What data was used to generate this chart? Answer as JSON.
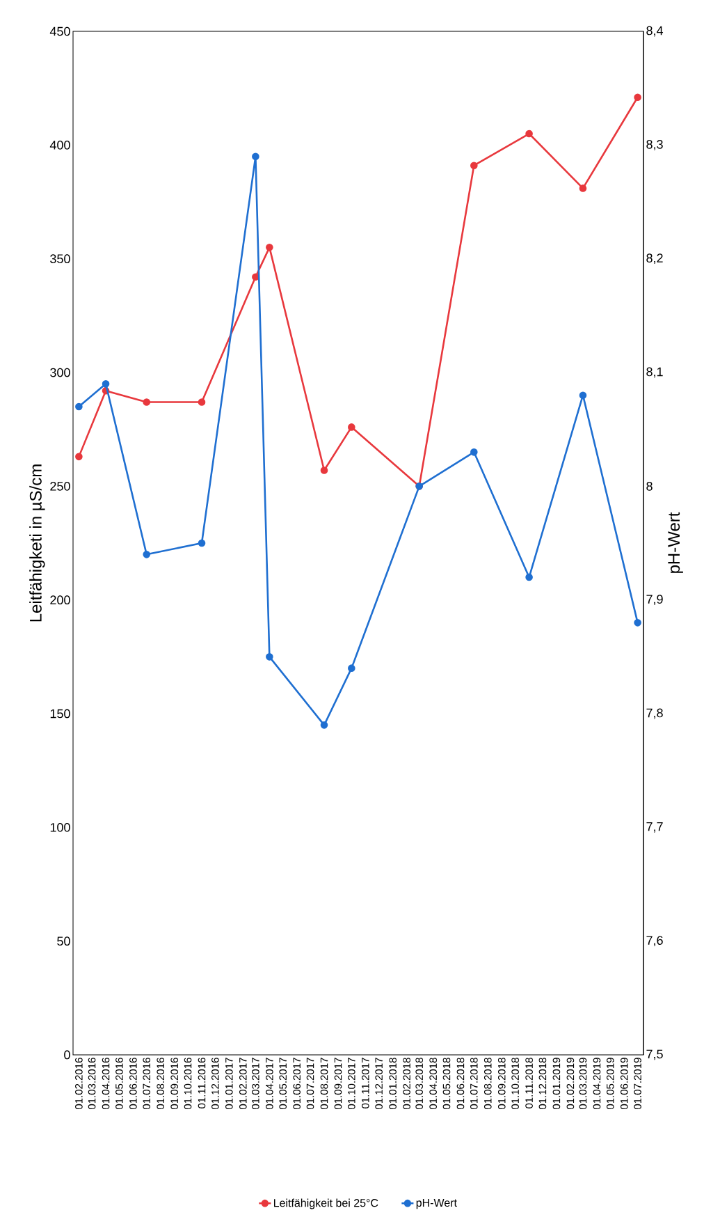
{
  "chart_data": {
    "type": "line",
    "ylabel": "Leitfähigketi in µS/cm",
    "y2label": "pH-Wert",
    "xlim": [
      "2016-01-19",
      "2019-07-14"
    ],
    "ylim": [
      0,
      450
    ],
    "yticks": [
      0,
      50,
      100,
      150,
      200,
      250,
      300,
      350,
      400,
      450
    ],
    "y2lim": [
      7.5,
      8.4
    ],
    "y2ticks": [
      {
        "value": 7.5,
        "label": "7,5"
      },
      {
        "value": 7.6,
        "label": "7,6"
      },
      {
        "value": 7.7,
        "label": "7,7"
      },
      {
        "value": 7.8,
        "label": "7,8"
      },
      {
        "value": 7.9,
        "label": "7,9"
      },
      {
        "value": 8,
        "label": "8"
      },
      {
        "value": 8.1,
        "label": "8,1"
      },
      {
        "value": 8.2,
        "label": "8,2"
      },
      {
        "value": 8.3,
        "label": "8,3"
      },
      {
        "value": 8.4,
        "label": "8,4"
      }
    ],
    "xticks": [
      {
        "value": "2016-02-01",
        "label": "01.02.2016"
      },
      {
        "value": "2016-03-01",
        "label": "01.03.2016"
      },
      {
        "value": "2016-04-01",
        "label": "01.04.2016"
      },
      {
        "value": "2016-05-01",
        "label": "01.05.2016"
      },
      {
        "value": "2016-06-01",
        "label": "01.06.2016"
      },
      {
        "value": "2016-07-01",
        "label": "01.07.2016"
      },
      {
        "value": "2016-08-01",
        "label": "01.08.2016"
      },
      {
        "value": "2016-09-01",
        "label": "01.09.2016"
      },
      {
        "value": "2016-10-01",
        "label": "01.10.2016"
      },
      {
        "value": "2016-11-01",
        "label": "01.11.2016"
      },
      {
        "value": "2016-12-01",
        "label": "01.12.2016"
      },
      {
        "value": "2017-01-01",
        "label": "01.01.2017"
      },
      {
        "value": "2017-02-01",
        "label": "01.02.2017"
      },
      {
        "value": "2017-03-01",
        "label": "01.03.2017"
      },
      {
        "value": "2017-04-01",
        "label": "01.04.2017"
      },
      {
        "value": "2017-05-01",
        "label": "01.05.2017"
      },
      {
        "value": "2017-06-01",
        "label": "01.06.2017"
      },
      {
        "value": "2017-07-01",
        "label": "01.07.2017"
      },
      {
        "value": "2017-08-01",
        "label": "01.08.2017"
      },
      {
        "value": "2017-09-01",
        "label": "01.09.2017"
      },
      {
        "value": "2017-10-01",
        "label": "01.10.2017"
      },
      {
        "value": "2017-11-01",
        "label": "01.11.2017"
      },
      {
        "value": "2017-12-01",
        "label": "01.12.2017"
      },
      {
        "value": "2018-01-01",
        "label": "01.01.2018"
      },
      {
        "value": "2018-02-01",
        "label": "01.02.2018"
      },
      {
        "value": "2018-03-01",
        "label": "01.03.2018"
      },
      {
        "value": "2018-04-01",
        "label": "01.04.2018"
      },
      {
        "value": "2018-05-01",
        "label": "01.05.2018"
      },
      {
        "value": "2018-06-01",
        "label": "01.06.2018"
      },
      {
        "value": "2018-07-01",
        "label": "01.07.2018"
      },
      {
        "value": "2018-08-01",
        "label": "01.08.2018"
      },
      {
        "value": "2018-09-01",
        "label": "01.09.2018"
      },
      {
        "value": "2018-10-01",
        "label": "01.10.2018"
      },
      {
        "value": "2018-11-01",
        "label": "01.11.2018"
      },
      {
        "value": "2018-12-01",
        "label": "01.12.2018"
      },
      {
        "value": "2019-01-01",
        "label": "01.01.2019"
      },
      {
        "value": "2019-02-01",
        "label": "01.02.2019"
      },
      {
        "value": "2019-03-01",
        "label": "01.03.2019"
      },
      {
        "value": "2019-04-01",
        "label": "01.04.2019"
      },
      {
        "value": "2019-05-01",
        "label": "01.05.2019"
      },
      {
        "value": "2019-06-01",
        "label": "01.06.2019"
      },
      {
        "value": "2019-07-01",
        "label": "01.07.2019"
      }
    ],
    "x": [
      "2016-02-01",
      "2016-04-01",
      "2016-07-01",
      "2016-11-01",
      "2017-03-01",
      "2017-04-01",
      "2017-08-01",
      "2017-10-01",
      "2018-03-01",
      "2018-07-01",
      "2018-11-01",
      "2019-03-01",
      "2019-07-01"
    ],
    "series": [
      {
        "name": "Leitfähigkeit bei 25°C",
        "color": "#e8383d",
        "values": [
          263,
          292,
          287,
          287,
          342,
          355,
          257,
          276,
          250,
          391,
          405,
          381,
          421
        ]
      },
      {
        "name": "pH-Wert",
        "color": "#1f6fd1",
        "axis": "y2",
        "values": [
          8.07,
          8.09,
          7.94,
          7.95,
          8.29,
          7.85,
          7.79,
          7.84,
          8.0,
          8.03,
          7.92,
          8.08,
          7.88
        ]
      }
    ],
    "marker": "circle",
    "line_style": "solid",
    "legend": "bottom"
  }
}
